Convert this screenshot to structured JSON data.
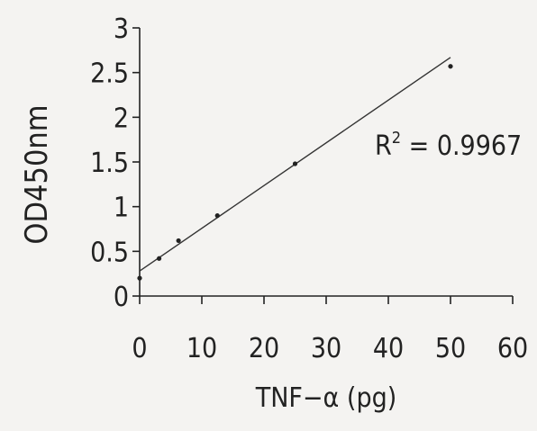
{
  "chart_data": {
    "type": "scatter",
    "title": "",
    "xlabel": "TNF−α (pg)",
    "ylabel": "OD450nm",
    "xlim": [
      0,
      60
    ],
    "ylim": [
      0,
      3
    ],
    "x_ticks": [
      "0",
      "10",
      "20",
      "30",
      "40",
      "50",
      "60"
    ],
    "y_ticks": [
      "0",
      "0.5",
      "1",
      "1.5",
      "2",
      "2.5",
      "3"
    ],
    "grid": false,
    "legend": "none",
    "series": [
      {
        "x": [
          0,
          3.125,
          6.25,
          12.5,
          25,
          50
        ],
        "y": [
          0.2,
          0.42,
          0.62,
          0.9,
          1.48,
          2.57
        ]
      }
    ],
    "trendline": {
      "type": "linear",
      "slope": 0.0478,
      "intercept": 0.28,
      "x_range": [
        0,
        50
      ]
    },
    "annotation": {
      "prefix": "R",
      "superscript": "2",
      "text": " = 0.9967"
    },
    "colors": {
      "line": "#333333",
      "marker": "#222222",
      "axis": "#222222"
    }
  }
}
